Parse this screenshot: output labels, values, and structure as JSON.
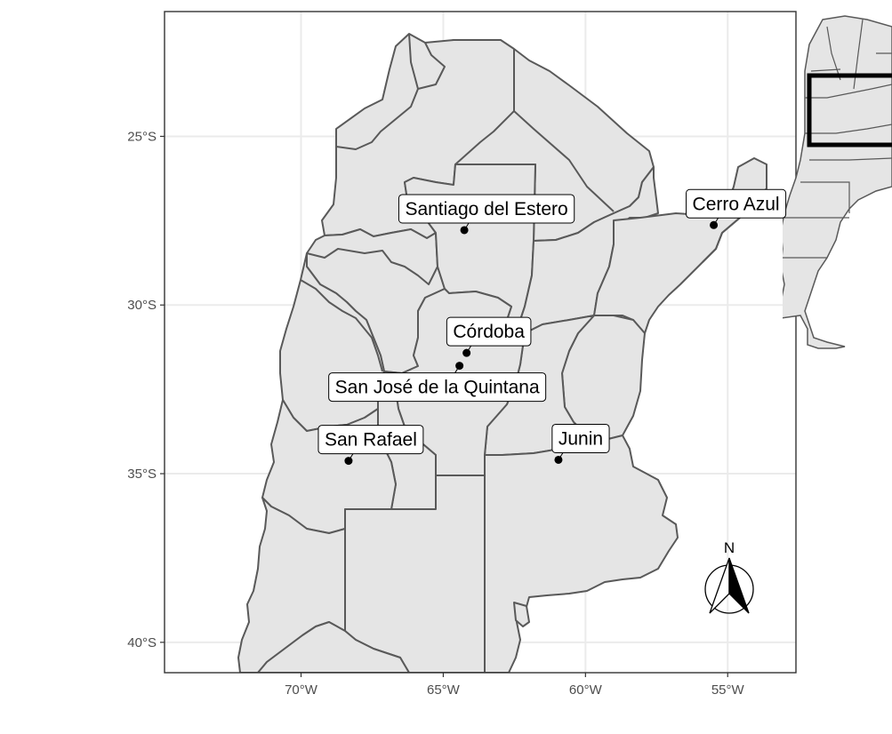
{
  "map": {
    "x_axis": {
      "range": [
        -74.8,
        -52.6
      ],
      "ticks": [
        {
          "value": -70,
          "label": "70°W"
        },
        {
          "value": -65,
          "label": "65°W"
        },
        {
          "value": -60,
          "label": "60°W"
        },
        {
          "value": -55,
          "label": "55°W"
        }
      ]
    },
    "y_axis": {
      "range": [
        -40.9,
        -21.3
      ],
      "ticks": [
        {
          "value": -25,
          "label": "25°S"
        },
        {
          "value": -30,
          "label": "30°S"
        },
        {
          "value": -35,
          "label": "35°S"
        },
        {
          "value": -40,
          "label": "40°S"
        }
      ]
    },
    "grid": true,
    "places": [
      {
        "name": "Santiago del Estero",
        "lon": -64.26,
        "lat": -27.78
      },
      {
        "name": "Cerro Azul",
        "lon": -55.49,
        "lat": -27.63
      },
      {
        "name": "Córdoba",
        "lon": -64.18,
        "lat": -31.42
      },
      {
        "name": "San José de la Quintana",
        "lon": -64.43,
        "lat": -31.8
      },
      {
        "name": "San Rafael",
        "lon": -68.33,
        "lat": -34.62
      },
      {
        "name": "Junin",
        "lon": -60.95,
        "lat": -34.59
      }
    ],
    "north_arrow": {
      "label": "N"
    },
    "inset": {
      "description_visible": false
    }
  },
  "colors": {
    "land": "#e5e5e5",
    "border": "#595959",
    "grid": "#ebebeb",
    "panel_border": "#333333",
    "point": "#000000"
  }
}
